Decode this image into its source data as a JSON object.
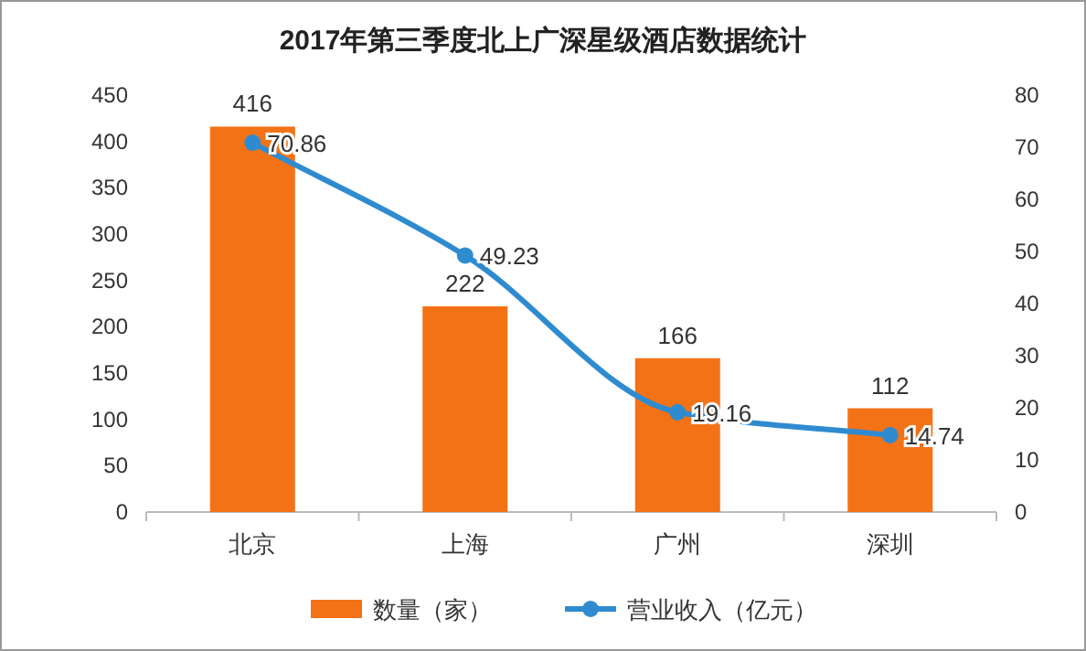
{
  "chart_data": {
    "type": "bar",
    "title": "2017年第三季度北上广深星级酒店数据统计",
    "categories": [
      "北京",
      "上海",
      "广州",
      "深圳"
    ],
    "series": [
      {
        "name": "数量（家）",
        "color": "#f47216",
        "values": [
          416,
          222,
          166,
          112
        ]
      },
      {
        "name": "营业收入（亿元）",
        "type": "line",
        "axis": "y2",
        "color": "#2f8bd0",
        "values": [
          70.86,
          49.23,
          19.16,
          14.74
        ]
      }
    ],
    "ylim": [
      0,
      450
    ],
    "yticks": [
      0,
      50,
      100,
      150,
      200,
      250,
      300,
      350,
      400,
      450
    ],
    "y2lim": [
      0,
      80
    ],
    "y2ticks": [
      0,
      10,
      20,
      30,
      40,
      50,
      60,
      70,
      80
    ],
    "data_labels": true,
    "legend": "bottom",
    "grid": false,
    "marker": "circle",
    "line_style": "solid"
  }
}
